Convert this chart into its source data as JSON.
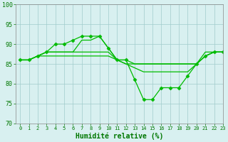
{
  "xlabel": "Humidité relative (%)",
  "background_color": "#d8f0f0",
  "grid_color": "#a0cccc",
  "line_color": "#00bb00",
  "xlim": [
    -0.5,
    23
  ],
  "ylim": [
    70,
    100
  ],
  "yticks": [
    70,
    75,
    80,
    85,
    90,
    95,
    100
  ],
  "xticks": [
    0,
    1,
    2,
    3,
    4,
    5,
    6,
    7,
    8,
    9,
    10,
    11,
    12,
    13,
    14,
    15,
    16,
    17,
    18,
    19,
    20,
    21,
    22,
    23
  ],
  "xlabel_color": "#007700",
  "tick_color": "#007700",
  "lines": [
    {
      "x": [
        0,
        1,
        2,
        3,
        4,
        5,
        6,
        7,
        8,
        9,
        10,
        11,
        12,
        13,
        14,
        15,
        16,
        17,
        18,
        19,
        20,
        21,
        22,
        23
      ],
      "y": [
        86,
        86,
        87,
        88,
        90,
        90,
        91,
        92,
        92,
        92,
        89,
        86,
        86,
        81,
        76,
        76,
        79,
        79,
        79,
        82,
        85,
        87,
        88,
        88
      ],
      "marker": "D",
      "markersize": 2.5
    },
    {
      "x": [
        0,
        1,
        2,
        3,
        4,
        5,
        6,
        7,
        8,
        9,
        10,
        11,
        12,
        13,
        14,
        15,
        16,
        17,
        18,
        19,
        20,
        21,
        22,
        23
      ],
      "y": [
        86,
        86,
        87,
        88,
        88,
        88,
        88,
        91,
        91,
        92,
        89,
        86,
        85,
        85,
        85,
        85,
        85,
        85,
        85,
        85,
        85,
        88,
        88,
        88
      ],
      "marker": null,
      "markersize": 0
    },
    {
      "x": [
        0,
        1,
        2,
        3,
        4,
        5,
        6,
        7,
        8,
        9,
        10,
        11,
        12,
        13,
        14,
        15,
        16,
        17,
        18,
        19,
        20,
        21,
        22,
        23
      ],
      "y": [
        86,
        86,
        87,
        88,
        88,
        88,
        88,
        88,
        88,
        88,
        88,
        86,
        85,
        84,
        83,
        83,
        83,
        83,
        83,
        83,
        85,
        87,
        88,
        88
      ],
      "marker": null,
      "markersize": 0
    },
    {
      "x": [
        0,
        1,
        2,
        3,
        4,
        5,
        6,
        7,
        8,
        9,
        10,
        11,
        12,
        13,
        14,
        15,
        16,
        17,
        18,
        19,
        20,
        21,
        22,
        23
      ],
      "y": [
        86,
        86,
        87,
        87,
        87,
        87,
        87,
        87,
        87,
        87,
        87,
        86,
        86,
        85,
        85,
        85,
        85,
        85,
        85,
        85,
        85,
        87,
        88,
        88
      ],
      "marker": null,
      "markersize": 0
    }
  ]
}
